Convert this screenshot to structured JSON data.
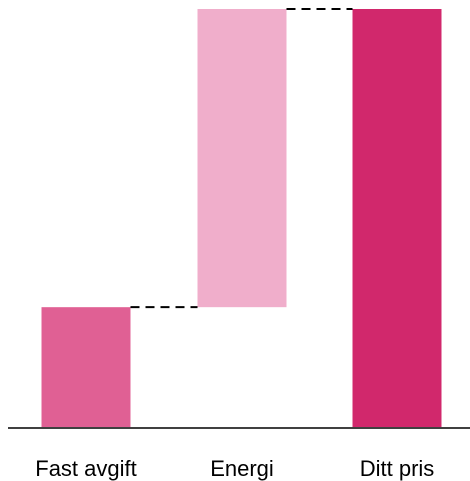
{
  "chart_data": {
    "type": "bar",
    "subtype": "waterfall",
    "categories": [
      "Fast avgift",
      "Energi",
      "Ditt pris"
    ],
    "values": [
      86,
      214,
      300
    ],
    "kind": [
      "increase",
      "increase",
      "total"
    ],
    "title": "",
    "xlabel": "",
    "ylabel": "",
    "ylim": [
      0,
      300
    ],
    "grid": false,
    "legend": "none",
    "connectors": true,
    "colors": [
      "#e06094",
      "#f0aecb",
      "#d1286c"
    ],
    "connector_color": "#000000",
    "axis_color": "#000000"
  }
}
